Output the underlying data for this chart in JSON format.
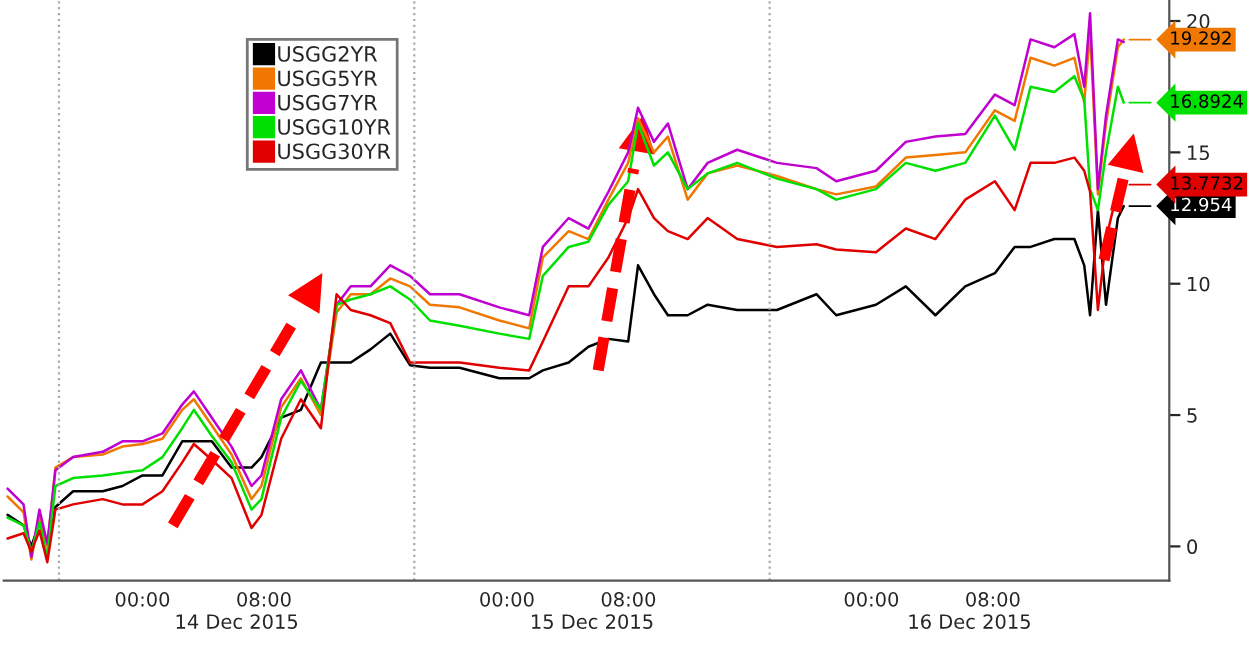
{
  "chart_data": {
    "type": "line",
    "x": [
      "2015-12-13T15:07",
      "2015-12-13T16:10",
      "2015-12-13T16:41",
      "2015-12-13T17:13",
      "2015-12-13T17:44",
      "2015-12-13T18:16",
      "2015-12-13T19:26",
      "2015-12-13T21:23",
      "2015-12-13T22:41",
      "2015-12-14T00:00",
      "2015-12-14T01:19",
      "2015-12-14T02:37",
      "2015-12-14T03:23",
      "2015-12-14T04:34",
      "2015-12-14T05:52",
      "2015-12-14T07:11",
      "2015-12-14T07:50",
      "2015-12-14T09:08",
      "2015-12-14T10:26",
      "2015-12-14T11:45",
      "2015-12-14T12:47",
      "2015-12-14T13:43",
      "2015-12-14T15:01",
      "2015-12-14T16:19",
      "2015-12-14T17:37",
      "2015-12-14T18:56",
      "2015-12-14T20:53",
      "2015-12-14T23:30",
      "2015-12-15T01:28",
      "2015-12-15T02:22",
      "2015-12-15T04:04",
      "2015-12-15T05:22",
      "2015-12-15T06:41",
      "2015-12-15T07:59",
      "2015-12-15T08:38",
      "2015-12-15T09:41",
      "2015-12-15T10:36",
      "2015-12-15T11:54",
      "2015-12-15T13:13",
      "2015-12-15T15:10",
      "2015-12-15T17:47",
      "2015-12-15T20:23",
      "2015-12-15T21:41",
      "2015-12-16T00:18",
      "2015-12-16T02:16",
      "2015-12-16T04:13",
      "2015-12-16T06:11",
      "2015-12-16T08:08",
      "2015-12-16T09:26",
      "2015-12-16T10:29",
      "2015-12-16T12:03",
      "2015-12-16T13:22",
      "2015-12-16T14:01",
      "2015-12-16T14:24",
      "2015-12-16T14:55",
      "2015-12-16T15:27",
      "2015-12-16T16:14",
      "2015-12-16T16:37"
    ],
    "series": [
      {
        "name": "USGG2YR",
        "color": "#000000",
        "values": [
          1.2,
          0.8,
          0.0,
          0.9,
          0.2,
          1.5,
          2.1,
          2.1,
          2.3,
          2.7,
          2.7,
          4.0,
          4.0,
          4.0,
          3.0,
          3.0,
          3.4,
          4.9,
          5.2,
          7.0,
          7.0,
          7.0,
          7.5,
          8.1,
          6.9,
          6.8,
          6.8,
          6.4,
          6.4,
          6.7,
          7.0,
          7.6,
          7.9,
          7.8,
          10.7,
          9.6,
          8.8,
          8.8,
          9.2,
          9.0,
          9.0,
          9.6,
          8.8,
          9.2,
          9.9,
          8.8,
          9.9,
          10.4,
          11.4,
          11.4,
          11.7,
          11.7,
          10.7,
          8.8,
          12.8,
          9.2,
          12.5,
          12.954
        ],
        "value_labels": [
          null,
          null,
          null,
          null,
          null,
          null,
          null,
          null,
          null,
          null,
          null,
          null,
          null,
          null,
          null,
          null,
          null,
          null,
          null,
          null,
          null,
          null,
          null,
          null,
          null,
          null,
          null,
          null,
          null,
          null,
          null,
          null,
          null,
          null,
          null,
          null,
          null,
          null,
          null,
          null,
          null,
          null,
          null,
          null,
          null,
          null,
          null,
          null,
          null,
          null,
          null,
          null,
          null,
          null,
          null,
          null,
          null,
          "12.954"
        ]
      },
      {
        "name": "USGG5YR",
        "color": "#f07800",
        "values": [
          1.9,
          1.3,
          -0.5,
          1.2,
          0.0,
          3.0,
          3.4,
          3.5,
          3.8,
          3.9,
          4.1,
          5.2,
          5.6,
          4.6,
          3.5,
          1.8,
          2.3,
          5.3,
          6.4,
          5.0,
          8.9,
          9.6,
          9.6,
          10.2,
          9.9,
          9.2,
          9.1,
          8.6,
          8.3,
          11.0,
          12.0,
          11.7,
          13.2,
          14.6,
          16.3,
          15.0,
          15.6,
          13.2,
          14.2,
          14.5,
          14.1,
          13.6,
          13.4,
          13.7,
          14.8,
          14.9,
          15.0,
          16.6,
          16.2,
          18.6,
          18.3,
          18.6,
          16.9,
          19.6,
          13.4,
          16.1,
          19.0,
          19.292
        ],
        "value_labels": [
          null,
          null,
          null,
          null,
          null,
          null,
          null,
          null,
          null,
          null,
          null,
          null,
          null,
          null,
          null,
          null,
          null,
          null,
          null,
          null,
          null,
          null,
          null,
          null,
          null,
          null,
          null,
          null,
          null,
          null,
          null,
          null,
          null,
          null,
          null,
          null,
          null,
          null,
          null,
          null,
          null,
          null,
          null,
          null,
          null,
          null,
          null,
          null,
          null,
          null,
          null,
          null,
          null,
          null,
          null,
          null,
          null,
          "19.292"
        ]
      },
      {
        "name": "USGG7YR",
        "color": "#c000d0",
        "values": [
          2.2,
          1.6,
          -0.4,
          1.4,
          0.1,
          2.9,
          3.4,
          3.6,
          4.0,
          4.0,
          4.3,
          5.4,
          5.9,
          4.9,
          3.8,
          2.3,
          2.7,
          5.6,
          6.7,
          5.2,
          9.2,
          9.9,
          9.9,
          10.7,
          10.3,
          9.6,
          9.6,
          9.1,
          8.8,
          11.4,
          12.5,
          12.1,
          13.5,
          15.0,
          16.7,
          15.4,
          16.1,
          13.6,
          14.6,
          15.1,
          14.6,
          14.4,
          13.9,
          14.3,
          15.4,
          15.6,
          15.7,
          17.2,
          16.8,
          19.3,
          19.0,
          19.5,
          17.5,
          20.3,
          13.6,
          16.4,
          19.3,
          19.2
        ]
      },
      {
        "name": "USGG10YR",
        "color": "#00e000",
        "values": [
          1.1,
          0.8,
          -0.2,
          0.9,
          -0.4,
          2.3,
          2.6,
          2.7,
          2.8,
          2.9,
          3.4,
          4.5,
          5.2,
          4.2,
          3.2,
          1.4,
          1.8,
          4.9,
          6.3,
          5.2,
          9.2,
          9.4,
          9.6,
          9.9,
          9.4,
          8.6,
          8.4,
          8.1,
          7.9,
          10.3,
          11.4,
          11.6,
          13.0,
          13.9,
          16.1,
          14.5,
          15.0,
          13.6,
          14.2,
          14.6,
          14.0,
          13.6,
          13.2,
          13.6,
          14.6,
          14.3,
          14.6,
          16.4,
          15.1,
          17.5,
          17.3,
          17.9,
          17.0,
          13.6,
          12.8,
          15.0,
          17.5,
          16.8924
        ],
        "value_labels": [
          null,
          null,
          null,
          null,
          null,
          null,
          null,
          null,
          null,
          null,
          null,
          null,
          null,
          null,
          null,
          null,
          null,
          null,
          null,
          null,
          null,
          null,
          null,
          null,
          null,
          null,
          null,
          null,
          null,
          null,
          null,
          null,
          null,
          null,
          null,
          null,
          null,
          null,
          null,
          null,
          null,
          null,
          null,
          null,
          null,
          null,
          null,
          null,
          null,
          null,
          null,
          null,
          null,
          null,
          null,
          null,
          null,
          "16.8924"
        ]
      },
      {
        "name": "USGG30YR",
        "color": "#e00000",
        "values": [
          0.3,
          0.5,
          -0.2,
          0.6,
          -0.6,
          1.4,
          1.6,
          1.8,
          1.6,
          1.6,
          2.1,
          3.2,
          3.9,
          3.3,
          2.6,
          0.7,
          1.2,
          4.1,
          5.6,
          4.5,
          9.6,
          9.0,
          8.8,
          8.5,
          7.0,
          7.0,
          7.0,
          6.8,
          6.7,
          7.8,
          9.9,
          9.9,
          11.0,
          12.5,
          13.6,
          12.5,
          12.0,
          11.7,
          12.5,
          11.7,
          11.4,
          11.5,
          11.3,
          11.2,
          12.1,
          11.7,
          13.2,
          13.9,
          12.8,
          14.6,
          14.6,
          14.8,
          14.3,
          13.5,
          9.0,
          11.7,
          13.6,
          13.7732
        ],
        "value_labels": [
          null,
          null,
          null,
          null,
          null,
          null,
          null,
          null,
          null,
          null,
          null,
          null,
          null,
          null,
          null,
          null,
          null,
          null,
          null,
          null,
          null,
          null,
          null,
          null,
          null,
          null,
          null,
          null,
          null,
          null,
          null,
          null,
          null,
          null,
          null,
          null,
          null,
          null,
          null,
          null,
          null,
          null,
          null,
          null,
          null,
          null,
          null,
          null,
          null,
          null,
          null,
          null,
          null,
          null,
          null,
          null,
          null,
          "13.7732"
        ]
      }
    ],
    "xlim": [
      "2015-12-13T14:52",
      "2015-12-16T19:37"
    ],
    "xticks": [
      {
        "value": "2015-12-13T18:30",
        "label": null
      },
      {
        "value": "2015-12-14T00:00",
        "label": "00:00"
      },
      {
        "value": "2015-12-14T08:00",
        "label": "08:00"
      },
      {
        "value": "2015-12-14T17:54",
        "label": null
      },
      {
        "value": "2015-12-15T00:00",
        "label": "00:00"
      },
      {
        "value": "2015-12-15T08:00",
        "label": "08:00"
      },
      {
        "value": "2015-12-15T17:18",
        "label": null
      },
      {
        "value": "2015-12-16T00:00",
        "label": "00:00"
      },
      {
        "value": "2015-12-16T08:00",
        "label": "08:00"
      }
    ],
    "ylim": [
      -1.3,
      20.8
    ],
    "yticks": [
      0,
      5,
      10,
      15,
      20
    ],
    "grid": "x",
    "legend": "top left",
    "line_style": "solid",
    "annotations": [
      "14 Dec 2015",
      "15 Dec 2015",
      "16 Dec 2015"
    ]
  }
}
